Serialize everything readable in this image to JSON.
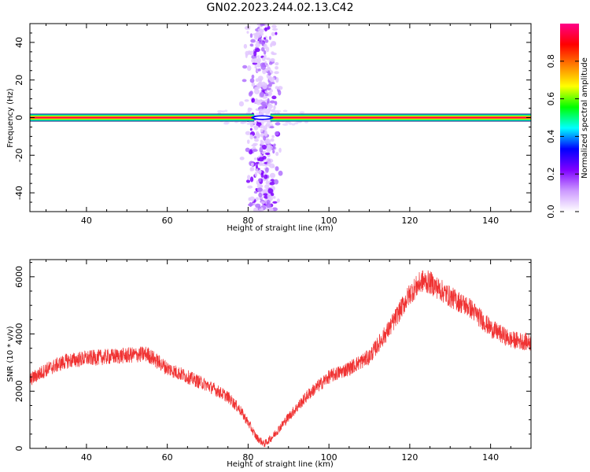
{
  "title": "GN02.2023.244.02.13.C42",
  "chart_data": [
    {
      "id": "spectrogram",
      "type": "heatmap",
      "xlabel": "Height of straight line (km)",
      "ylabel": "Frequency (Hz)",
      "xlim": [
        26,
        150
      ],
      "ylim": [
        -50,
        50
      ],
      "xticks": [
        40,
        60,
        80,
        100,
        120,
        140
      ],
      "yticks": [
        -40,
        -20,
        0,
        20,
        40
      ],
      "dc_line": {
        "frequency_hz": 0,
        "amplitude": 1.0,
        "x_range": [
          26,
          150
        ],
        "gap_center_km": 83.5,
        "gap_width_km": 4
      },
      "broadband_event": {
        "x_center_km": 83.5,
        "x_width_km": 7,
        "frequency_range_hz": [
          -50,
          50
        ],
        "typical_amplitude": 0.2
      },
      "colorbar": {
        "label": "Normalized spectral amplitude",
        "ticks": [
          0.0,
          0.2,
          0.4,
          0.6,
          0.8
        ],
        "range": [
          0,
          1
        ],
        "colors": [
          "#ffffff",
          "#cc99ff",
          "#7f00ff",
          "#0000ff",
          "#00ffff",
          "#00ff00",
          "#ffff00",
          "#ff7f00",
          "#ff0000",
          "#ff0088"
        ]
      }
    },
    {
      "id": "snr",
      "type": "line",
      "xlabel": "Height of straight line (km)",
      "ylabel": "SNR (10 * v/v)",
      "xlim": [
        26,
        150
      ],
      "ylim": [
        0,
        6600
      ],
      "xticks": [
        40,
        60,
        80,
        100,
        120,
        140
      ],
      "yticks": [
        0,
        2000,
        4000,
        6000
      ],
      "series": [
        {
          "color": "#f03232",
          "x": [
            26,
            30,
            35,
            40,
            45,
            50,
            55,
            60,
            65,
            70,
            75,
            78,
            80,
            82,
            84,
            86,
            90,
            95,
            100,
            105,
            110,
            115,
            120,
            123,
            125,
            130,
            135,
            140,
            145,
            150
          ],
          "y": [
            2400,
            2750,
            3050,
            3150,
            3200,
            3250,
            3300,
            2800,
            2500,
            2200,
            1800,
            1350,
            900,
            400,
            150,
            400,
            1100,
            1900,
            2500,
            2800,
            3200,
            4200,
            5400,
            5850,
            5800,
            5300,
            4900,
            4200,
            3800,
            3700
          ],
          "noise_amplitude": 300
        }
      ]
    }
  ]
}
